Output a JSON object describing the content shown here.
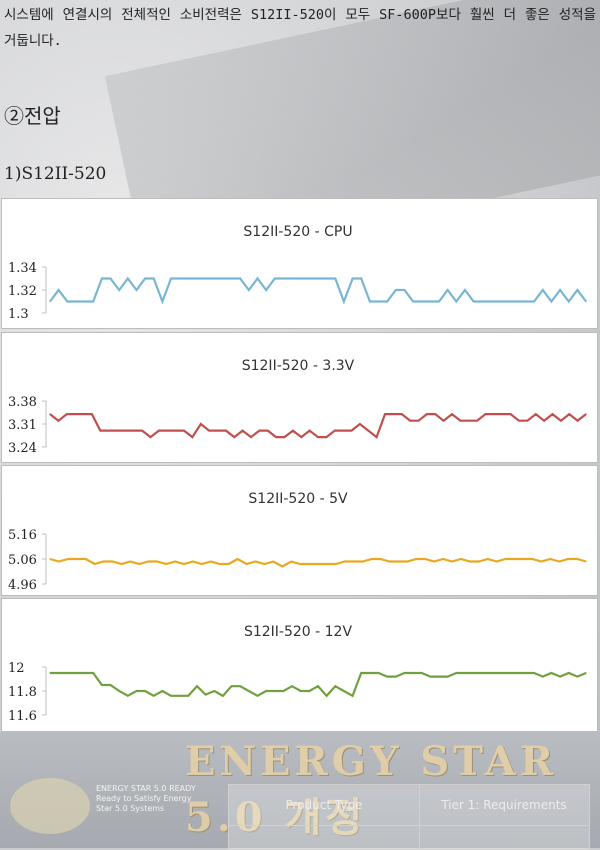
{
  "paragraph": {
    "text": "시스템에 연결시의 전체적인 소비전력은 S12II-520이 모두 SF-600P보다 훨씬 더 좋은 성적을 거둡니다."
  },
  "section_title": "②전압",
  "subsection_title": "1)S12II-520",
  "chart_data": [
    {
      "type": "line",
      "title": "S12II-520 - CPU",
      "ylim": [
        1.3,
        1.34
      ],
      "y_ticks": [
        "1.34",
        "1.32",
        "1.3"
      ],
      "color": "#79b6d3",
      "values": [
        1.31,
        1.32,
        1.31,
        1.31,
        1.31,
        1.31,
        1.33,
        1.33,
        1.32,
        1.33,
        1.32,
        1.33,
        1.33,
        1.31,
        1.33,
        1.33,
        1.33,
        1.33,
        1.33,
        1.33,
        1.33,
        1.33,
        1.33,
        1.32,
        1.33,
        1.32,
        1.33,
        1.33,
        1.33,
        1.33,
        1.33,
        1.33,
        1.33,
        1.33,
        1.31,
        1.33,
        1.33,
        1.31,
        1.31,
        1.31,
        1.32,
        1.32,
        1.31,
        1.31,
        1.31,
        1.31,
        1.32,
        1.31,
        1.32,
        1.31,
        1.31,
        1.31,
        1.31,
        1.31,
        1.31,
        1.31,
        1.31,
        1.32,
        1.31,
        1.32,
        1.31,
        1.32,
        1.31
      ]
    },
    {
      "type": "line",
      "title": "S12II-520 - 3.3V",
      "ylim": [
        3.24,
        3.38
      ],
      "y_ticks": [
        "3.38",
        "3.31",
        "3.24"
      ],
      "color": "#c0504d",
      "values": [
        3.34,
        3.32,
        3.34,
        3.34,
        3.34,
        3.34,
        3.29,
        3.29,
        3.29,
        3.29,
        3.29,
        3.29,
        3.27,
        3.29,
        3.29,
        3.29,
        3.29,
        3.27,
        3.31,
        3.29,
        3.29,
        3.29,
        3.27,
        3.29,
        3.27,
        3.29,
        3.29,
        3.27,
        3.27,
        3.29,
        3.27,
        3.29,
        3.27,
        3.27,
        3.29,
        3.29,
        3.29,
        3.31,
        3.29,
        3.27,
        3.34,
        3.34,
        3.34,
        3.32,
        3.32,
        3.34,
        3.34,
        3.32,
        3.34,
        3.32,
        3.32,
        3.32,
        3.34,
        3.34,
        3.34,
        3.34,
        3.32,
        3.32,
        3.34,
        3.32,
        3.34,
        3.32,
        3.34,
        3.32,
        3.34
      ]
    },
    {
      "type": "line",
      "title": "S12II-520 - 5V",
      "ylim": [
        4.96,
        5.16
      ],
      "y_ticks": [
        "5.16",
        "5.06",
        "4.96"
      ],
      "color": "#e8a820",
      "values": [
        5.06,
        5.05,
        5.06,
        5.06,
        5.06,
        5.04,
        5.05,
        5.05,
        5.04,
        5.05,
        5.04,
        5.05,
        5.05,
        5.04,
        5.05,
        5.04,
        5.05,
        5.04,
        5.05,
        5.04,
        5.04,
        5.06,
        5.04,
        5.05,
        5.04,
        5.05,
        5.03,
        5.05,
        5.04,
        5.04,
        5.04,
        5.04,
        5.04,
        5.05,
        5.05,
        5.05,
        5.06,
        5.06,
        5.05,
        5.05,
        5.05,
        5.06,
        5.06,
        5.05,
        5.06,
        5.05,
        5.06,
        5.05,
        5.05,
        5.06,
        5.05,
        5.06,
        5.06,
        5.06,
        5.06,
        5.05,
        5.06,
        5.05,
        5.06,
        5.06,
        5.05
      ]
    },
    {
      "type": "line",
      "title": "S12II-520 - 12V",
      "ylim": [
        11.6,
        12
      ],
      "y_ticks": [
        "12",
        "11.8",
        "11.6"
      ],
      "color": "#70a040",
      "values": [
        11.95,
        11.95,
        11.95,
        11.95,
        11.95,
        11.95,
        11.85,
        11.85,
        11.8,
        11.76,
        11.8,
        11.8,
        11.76,
        11.8,
        11.76,
        11.76,
        11.76,
        11.84,
        11.77,
        11.8,
        11.76,
        11.84,
        11.84,
        11.8,
        11.76,
        11.8,
        11.8,
        11.8,
        11.84,
        11.8,
        11.8,
        11.84,
        11.76,
        11.84,
        11.8,
        11.76,
        11.95,
        11.95,
        11.95,
        11.92,
        11.92,
        11.95,
        11.95,
        11.95,
        11.92,
        11.92,
        11.92,
        11.95,
        11.95,
        11.95,
        11.95,
        11.95,
        11.95,
        11.95,
        11.95,
        11.95,
        11.95,
        11.92,
        11.95,
        11.92,
        11.95,
        11.92,
        11.95
      ]
    }
  ],
  "banner": {
    "title": "ENERGY STAR 5.0 개정",
    "caption": "ENERGY STAR 5.0 READY Ready to Satisfy Energy Star 5.0 Systems",
    "table_headers": [
      "Product Type",
      "Tier 1: Requirements"
    ]
  }
}
